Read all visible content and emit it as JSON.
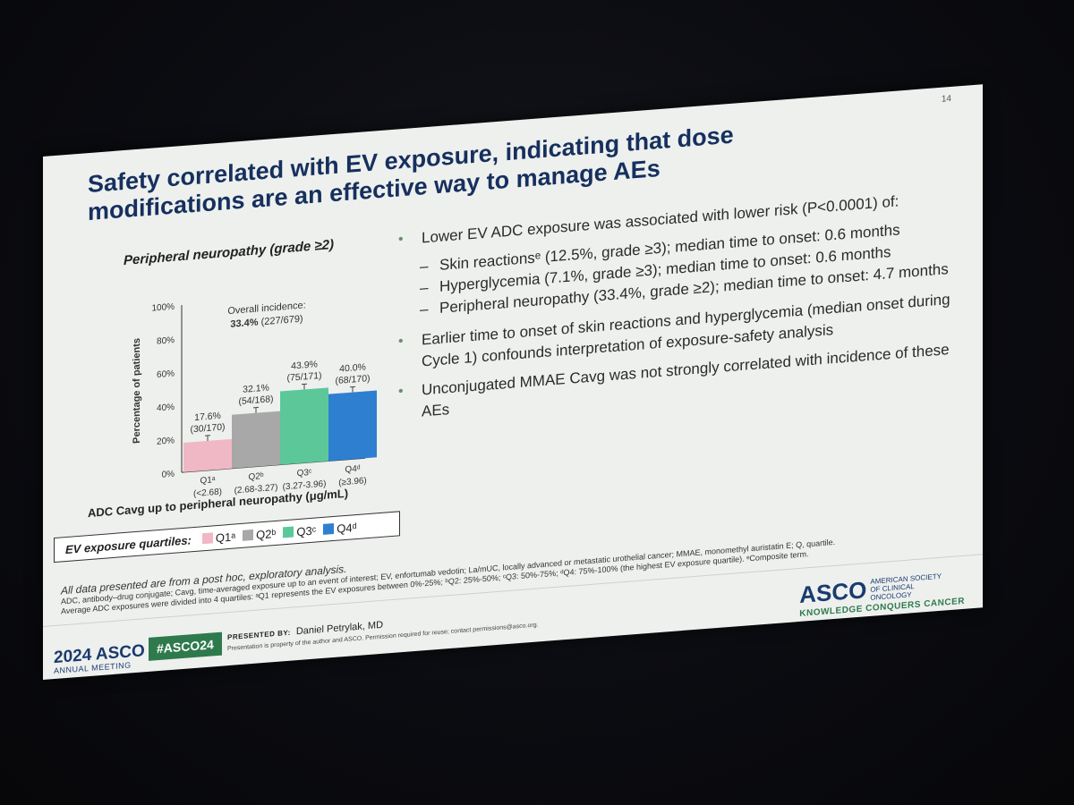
{
  "slide": {
    "page_number": "14",
    "title_line1": "Safety correlated with EV exposure, indicating that dose",
    "title_line2": "modifications are an effective way to manage AEs"
  },
  "chart_data": {
    "type": "bar",
    "title": "Peripheral neuropathy (grade ≥2)",
    "ylabel": "Percentage of patients",
    "xlabel": "ADC Cavg up to peripheral neuropathy (μg/mL)",
    "ylim": [
      0,
      100
    ],
    "yticks": [
      "0%",
      "20%",
      "40%",
      "60%",
      "80%",
      "100%"
    ],
    "annotation_line1": "Overall incidence:",
    "annotation_line2": "33.4% (227/679)",
    "categories": [
      "Q1ᵃ",
      "Q2ᵇ",
      "Q3ᶜ",
      "Q4ᵈ"
    ],
    "category_ranges": [
      "(<2.68)",
      "(2.68-3.27)",
      "(3.27-3.96)",
      "(≥3.96)"
    ],
    "values": [
      17.6,
      32.1,
      43.9,
      40.0
    ],
    "value_labels": [
      "17.6%",
      "32.1%",
      "43.9%",
      "40.0%"
    ],
    "count_labels": [
      "(30/170)",
      "(54/168)",
      "(75/171)",
      "(68/170)"
    ],
    "colors": [
      "#f0b8c4",
      "#a8a8a8",
      "#5cc89a",
      "#2f7fd0"
    ],
    "grid": false
  },
  "legend": {
    "title": "EV exposure quartiles:",
    "items": [
      {
        "label": "Q1ᵃ",
        "color": "#f0b8c4"
      },
      {
        "label": "Q2ᵇ",
        "color": "#a8a8a8"
      },
      {
        "label": "Q3ᶜ",
        "color": "#5cc89a"
      },
      {
        "label": "Q4ᵈ",
        "color": "#2f7fd0"
      }
    ]
  },
  "bullets": {
    "b1": "Lower EV ADC exposure was associated with lower risk (P<0.0001) of:",
    "s1": "Skin reactionsᵉ (12.5%, grade ≥3); median time to onset: 0.6 months",
    "s2": "Hyperglycemia (7.1%, grade ≥3); median time to onset: 0.6 months",
    "s3": "Peripheral neuropathy (33.4%, grade ≥2); median time to onset: 4.7 months",
    "b2": "Earlier time to onset of skin reactions and hyperglycemia (median onset during Cycle 1) confounds interpretation of exposure-safety analysis",
    "b3": "Unconjugated MMAE Cavg was not strongly correlated with incidence of these AEs"
  },
  "footnotes": {
    "f1": "All data presented are from a post hoc, exploratory analysis.",
    "f2": "ADC, antibody–drug conjugate; Cavg, time-averaged exposure up to an event of interest; EV, enfortumab vedotin; La/mUC, locally advanced or metastatic urothelial cancer; MMAE, monomethyl auristatin E; Q, quartile.",
    "f3": "Average ADC exposures were divided into 4 quartiles: ᵃQ1 represents the EV exposures between 0%-25%; ᵇQ2: 25%-50%; ᶜQ3: 50%-75%; ᵈQ4: 75%-100% (the highest EV exposure quartile). ᵉComposite term."
  },
  "footer": {
    "meeting_logo": "2024 ASCO",
    "meeting_sub": "ANNUAL MEETING",
    "hashtag": "#ASCO24",
    "presented_by_label": "PRESENTED BY:",
    "presenter": "Daniel Petrylak, MD",
    "permission": "Presentation is property of the author and ASCO. Permission required for reuse; contact permissions@asco.org.",
    "org_logo": "ASCO",
    "org_name": "AMERICAN SOCIETY OF CLINICAL ONCOLOGY",
    "tagline": "KNOWLEDGE CONQUERS CANCER"
  }
}
